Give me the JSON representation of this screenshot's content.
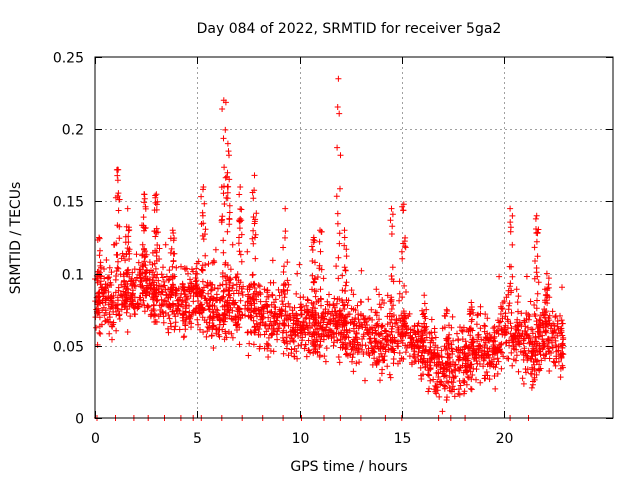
{
  "chart_data": {
    "type": "scatter",
    "title": "Day 084 of 2022, SRMTID for receiver 5ga2",
    "xlabel": "GPS time / hours",
    "ylabel": "SRMTID / TECUs",
    "xlim": [
      0,
      25.33
    ],
    "ylim": [
      0,
      0.25
    ],
    "x_ticks": [
      0,
      5,
      10,
      15,
      20
    ],
    "x_tick_labels": [
      "0",
      "5",
      "10",
      "15",
      "20"
    ],
    "y_ticks": [
      0,
      0.05,
      0.1,
      0.15,
      0.2,
      0.25
    ],
    "y_tick_labels": [
      "0",
      "0.05",
      "0.1",
      "0.15",
      "0.2",
      "0.25"
    ],
    "grid": true,
    "marker": "+",
    "marker_color": "#ff0000",
    "x_range_observed": [
      0,
      22.9
    ],
    "series": [
      {
        "name": "SRMTID",
        "baseline_envelope": [
          [
            0.0,
            0.075
          ],
          [
            0.5,
            0.085
          ],
          [
            1.0,
            0.08
          ],
          [
            1.5,
            0.09
          ],
          [
            2.0,
            0.085
          ],
          [
            2.5,
            0.09
          ],
          [
            3.0,
            0.085
          ],
          [
            3.5,
            0.08
          ],
          [
            4.0,
            0.085
          ],
          [
            4.5,
            0.08
          ],
          [
            5.0,
            0.085
          ],
          [
            5.5,
            0.08
          ],
          [
            6.0,
            0.07
          ],
          [
            6.5,
            0.08
          ],
          [
            7.0,
            0.075
          ],
          [
            7.5,
            0.075
          ],
          [
            8.0,
            0.07
          ],
          [
            8.5,
            0.07
          ],
          [
            9.0,
            0.07
          ],
          [
            9.5,
            0.065
          ],
          [
            10.0,
            0.06
          ],
          [
            10.5,
            0.06
          ],
          [
            11.0,
            0.06
          ],
          [
            11.5,
            0.065
          ],
          [
            12.0,
            0.065
          ],
          [
            12.5,
            0.06
          ],
          [
            13.0,
            0.06
          ],
          [
            13.5,
            0.055
          ],
          [
            14.0,
            0.05
          ],
          [
            14.5,
            0.055
          ],
          [
            15.0,
            0.06
          ],
          [
            15.5,
            0.05
          ],
          [
            16.0,
            0.045
          ],
          [
            16.5,
            0.04
          ],
          [
            17.0,
            0.035
          ],
          [
            17.5,
            0.04
          ],
          [
            18.0,
            0.04
          ],
          [
            18.5,
            0.045
          ],
          [
            19.0,
            0.045
          ],
          [
            19.5,
            0.05
          ],
          [
            20.0,
            0.06
          ],
          [
            20.5,
            0.06
          ],
          [
            21.0,
            0.05
          ],
          [
            21.5,
            0.045
          ],
          [
            22.0,
            0.06
          ],
          [
            22.5,
            0.055
          ],
          [
            22.9,
            0.045
          ]
        ],
        "peaks": [
          [
            0.2,
            0.125
          ],
          [
            1.1,
            0.172
          ],
          [
            1.6,
            0.145
          ],
          [
            2.4,
            0.155
          ],
          [
            3.0,
            0.155
          ],
          [
            3.8,
            0.13
          ],
          [
            5.3,
            0.16
          ],
          [
            6.3,
            0.22
          ],
          [
            6.5,
            0.19
          ],
          [
            7.1,
            0.16
          ],
          [
            7.8,
            0.168
          ],
          [
            9.3,
            0.145
          ],
          [
            10.7,
            0.125
          ],
          [
            11.0,
            0.13
          ],
          [
            11.9,
            0.235
          ],
          [
            12.2,
            0.13
          ],
          [
            14.5,
            0.145
          ],
          [
            15.1,
            0.148
          ],
          [
            16.1,
            0.085
          ],
          [
            17.2,
            0.075
          ],
          [
            18.4,
            0.08
          ],
          [
            20.3,
            0.145
          ],
          [
            21.6,
            0.14
          ],
          [
            22.1,
            0.1
          ]
        ],
        "zero_points_x": [
          0.1,
          1.0,
          1.9,
          2.6,
          3.4,
          4.2,
          4.8,
          5.2,
          6.2,
          7.2,
          8.2,
          9.2,
          10.1,
          11.2,
          12.0,
          13.0,
          14.2,
          15.0,
          16.8,
          17.4,
          18.1,
          20.3,
          21.2
        ]
      }
    ]
  }
}
